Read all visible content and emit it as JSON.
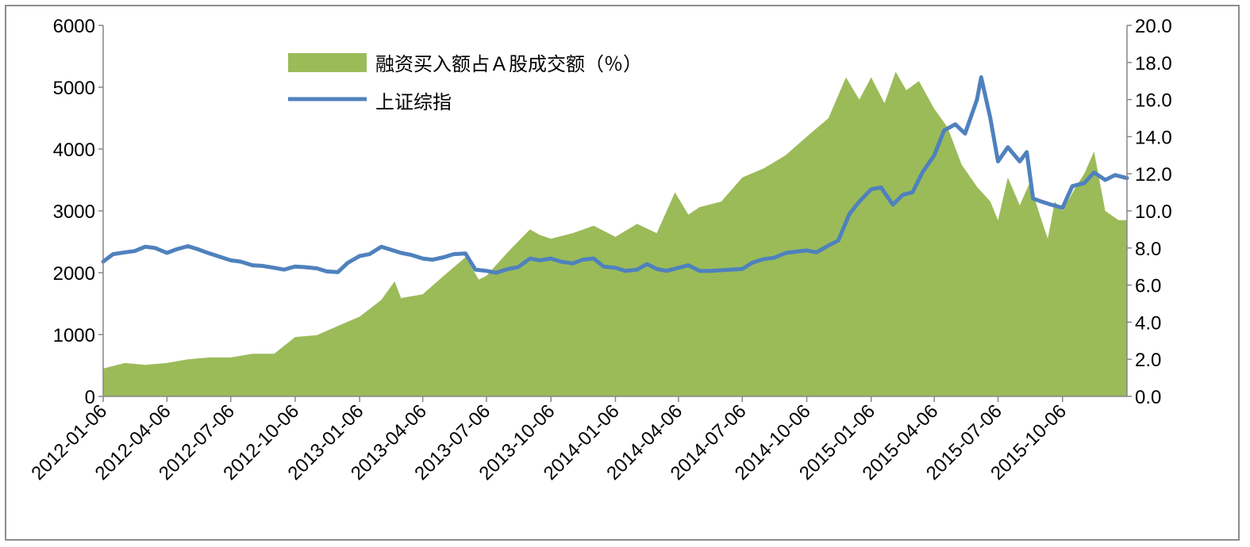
{
  "chart_data": {
    "type": "area+line",
    "x_labels": [
      "2012-01-06",
      "2012-04-06",
      "2012-07-06",
      "2012-10-06",
      "2013-01-06",
      "2013-04-06",
      "2013-07-06",
      "2013-10-06",
      "2014-01-06",
      "2014-04-06",
      "2014-07-06",
      "2014-10-06",
      "2015-01-06",
      "2015-04-06",
      "2015-07-06",
      "2015-10-06"
    ],
    "x_end": "2016-01-06",
    "left_axis": {
      "min": 0,
      "max": 6000,
      "ticks": [
        "0",
        "1000",
        "2000",
        "3000",
        "4000",
        "5000",
        "6000"
      ]
    },
    "right_axis": {
      "min": 0,
      "max": 20,
      "ticks": [
        "0.0",
        "2.0",
        "4.0",
        "6.0",
        "8.0",
        "10.0",
        "12.0",
        "14.0",
        "16.0",
        "18.0",
        "20.0"
      ]
    },
    "legend_position": "top-left",
    "series": [
      {
        "name": "融资买入额占Ａ股成交额（％）",
        "type": "area",
        "axis": "right",
        "color": "#9bbb59",
        "points": [
          [
            "2012-01-06",
            1.5
          ],
          [
            "2012-02-06",
            1.8
          ],
          [
            "2012-03-06",
            1.7
          ],
          [
            "2012-04-06",
            1.8
          ],
          [
            "2012-05-06",
            2.0
          ],
          [
            "2012-06-06",
            2.1
          ],
          [
            "2012-07-06",
            2.1
          ],
          [
            "2012-08-06",
            2.3
          ],
          [
            "2012-09-06",
            2.3
          ],
          [
            "2012-10-06",
            3.2
          ],
          [
            "2012-11-06",
            3.3
          ],
          [
            "2012-12-06",
            3.8
          ],
          [
            "2013-01-06",
            4.3
          ],
          [
            "2013-02-06",
            5.2
          ],
          [
            "2013-02-25",
            6.2
          ],
          [
            "2013-03-06",
            5.3
          ],
          [
            "2013-04-06",
            5.5
          ],
          [
            "2013-05-06",
            6.5
          ],
          [
            "2013-06-06",
            7.5
          ],
          [
            "2013-06-25",
            6.3
          ],
          [
            "2013-07-06",
            6.5
          ],
          [
            "2013-08-06",
            7.8
          ],
          [
            "2013-09-06",
            9.0
          ],
          [
            "2013-09-20",
            8.7
          ],
          [
            "2013-10-06",
            8.5
          ],
          [
            "2013-11-06",
            8.8
          ],
          [
            "2013-12-06",
            9.2
          ],
          [
            "2014-01-06",
            8.6
          ],
          [
            "2014-02-06",
            9.3
          ],
          [
            "2014-03-06",
            8.8
          ],
          [
            "2014-04-01",
            11.0
          ],
          [
            "2014-04-20",
            9.8
          ],
          [
            "2014-05-06",
            10.2
          ],
          [
            "2014-06-06",
            10.5
          ],
          [
            "2014-07-06",
            11.8
          ],
          [
            "2014-08-06",
            12.3
          ],
          [
            "2014-09-06",
            13.0
          ],
          [
            "2014-10-06",
            14.0
          ],
          [
            "2014-11-06",
            15.0
          ],
          [
            "2014-12-01",
            17.2
          ],
          [
            "2014-12-20",
            16.0
          ],
          [
            "2015-01-06",
            17.2
          ],
          [
            "2015-01-25",
            15.8
          ],
          [
            "2015-02-10",
            17.5
          ],
          [
            "2015-02-25",
            16.5
          ],
          [
            "2015-03-15",
            17.0
          ],
          [
            "2015-04-06",
            15.5
          ],
          [
            "2015-04-25",
            14.5
          ],
          [
            "2015-05-15",
            12.5
          ],
          [
            "2015-06-06",
            11.3
          ],
          [
            "2015-06-25",
            10.5
          ],
          [
            "2015-07-06",
            9.5
          ],
          [
            "2015-07-20",
            11.8
          ],
          [
            "2015-08-06",
            10.3
          ],
          [
            "2015-08-20",
            11.5
          ],
          [
            "2015-09-06",
            9.5
          ],
          [
            "2015-09-15",
            8.5
          ],
          [
            "2015-09-25",
            10.5
          ],
          [
            "2015-10-06",
            10.0
          ],
          [
            "2015-10-25",
            11.3
          ],
          [
            "2015-11-06",
            12.0
          ],
          [
            "2015-11-20",
            13.2
          ],
          [
            "2015-12-06",
            10.0
          ],
          [
            "2015-12-25",
            9.5
          ],
          [
            "2016-01-06",
            9.5
          ]
        ]
      },
      {
        "name": "上证综指",
        "type": "line",
        "axis": "left",
        "color": "#4f81bd",
        "points": [
          [
            "2012-01-06",
            2180
          ],
          [
            "2012-01-20",
            2300
          ],
          [
            "2012-02-06",
            2330
          ],
          [
            "2012-02-20",
            2350
          ],
          [
            "2012-03-06",
            2420
          ],
          [
            "2012-03-20",
            2400
          ],
          [
            "2012-04-06",
            2320
          ],
          [
            "2012-04-20",
            2380
          ],
          [
            "2012-05-06",
            2430
          ],
          [
            "2012-05-20",
            2380
          ],
          [
            "2012-06-06",
            2310
          ],
          [
            "2012-07-06",
            2200
          ],
          [
            "2012-07-20",
            2180
          ],
          [
            "2012-08-06",
            2120
          ],
          [
            "2012-08-20",
            2110
          ],
          [
            "2012-09-06",
            2080
          ],
          [
            "2012-09-20",
            2050
          ],
          [
            "2012-10-06",
            2100
          ],
          [
            "2012-10-20",
            2090
          ],
          [
            "2012-11-06",
            2070
          ],
          [
            "2012-11-20",
            2020
          ],
          [
            "2012-12-06",
            2010
          ],
          [
            "2012-12-20",
            2160
          ],
          [
            "2013-01-06",
            2270
          ],
          [
            "2013-01-20",
            2300
          ],
          [
            "2013-02-06",
            2420
          ],
          [
            "2013-02-20",
            2370
          ],
          [
            "2013-03-06",
            2320
          ],
          [
            "2013-03-20",
            2290
          ],
          [
            "2013-04-06",
            2230
          ],
          [
            "2013-04-20",
            2210
          ],
          [
            "2013-05-06",
            2250
          ],
          [
            "2013-05-20",
            2300
          ],
          [
            "2013-06-06",
            2310
          ],
          [
            "2013-06-20",
            2050
          ],
          [
            "2013-07-06",
            2030
          ],
          [
            "2013-07-20",
            2000
          ],
          [
            "2013-08-06",
            2060
          ],
          [
            "2013-08-20",
            2090
          ],
          [
            "2013-09-06",
            2230
          ],
          [
            "2013-09-20",
            2200
          ],
          [
            "2013-10-06",
            2230
          ],
          [
            "2013-10-20",
            2180
          ],
          [
            "2013-11-06",
            2150
          ],
          [
            "2013-11-20",
            2210
          ],
          [
            "2013-12-06",
            2230
          ],
          [
            "2013-12-20",
            2100
          ],
          [
            "2014-01-06",
            2080
          ],
          [
            "2014-01-20",
            2030
          ],
          [
            "2014-02-06",
            2050
          ],
          [
            "2014-02-20",
            2140
          ],
          [
            "2014-03-06",
            2060
          ],
          [
            "2014-03-20",
            2030
          ],
          [
            "2014-04-06",
            2080
          ],
          [
            "2014-04-20",
            2120
          ],
          [
            "2014-05-06",
            2030
          ],
          [
            "2014-05-20",
            2030
          ],
          [
            "2014-06-06",
            2040
          ],
          [
            "2014-06-20",
            2050
          ],
          [
            "2014-07-06",
            2060
          ],
          [
            "2014-07-20",
            2160
          ],
          [
            "2014-08-06",
            2220
          ],
          [
            "2014-08-20",
            2240
          ],
          [
            "2014-09-06",
            2320
          ],
          [
            "2014-09-20",
            2340
          ],
          [
            "2014-10-06",
            2360
          ],
          [
            "2014-10-20",
            2330
          ],
          [
            "2014-11-06",
            2440
          ],
          [
            "2014-11-20",
            2520
          ],
          [
            "2014-12-06",
            2950
          ],
          [
            "2014-12-20",
            3150
          ],
          [
            "2015-01-06",
            3350
          ],
          [
            "2015-01-20",
            3380
          ],
          [
            "2015-02-06",
            3100
          ],
          [
            "2015-02-20",
            3260
          ],
          [
            "2015-03-06",
            3300
          ],
          [
            "2015-03-20",
            3620
          ],
          [
            "2015-04-06",
            3900
          ],
          [
            "2015-04-20",
            4300
          ],
          [
            "2015-05-06",
            4400
          ],
          [
            "2015-05-20",
            4250
          ],
          [
            "2015-06-06",
            4800
          ],
          [
            "2015-06-12",
            5160
          ],
          [
            "2015-06-25",
            4500
          ],
          [
            "2015-07-06",
            3800
          ],
          [
            "2015-07-20",
            4030
          ],
          [
            "2015-08-06",
            3800
          ],
          [
            "2015-08-16",
            3950
          ],
          [
            "2015-08-25",
            3200
          ],
          [
            "2015-09-06",
            3150
          ],
          [
            "2015-09-20",
            3100
          ],
          [
            "2015-10-06",
            3050
          ],
          [
            "2015-10-20",
            3400
          ],
          [
            "2015-11-06",
            3450
          ],
          [
            "2015-11-20",
            3620
          ],
          [
            "2015-12-06",
            3500
          ],
          [
            "2015-12-20",
            3580
          ],
          [
            "2016-01-06",
            3530
          ]
        ]
      }
    ]
  }
}
